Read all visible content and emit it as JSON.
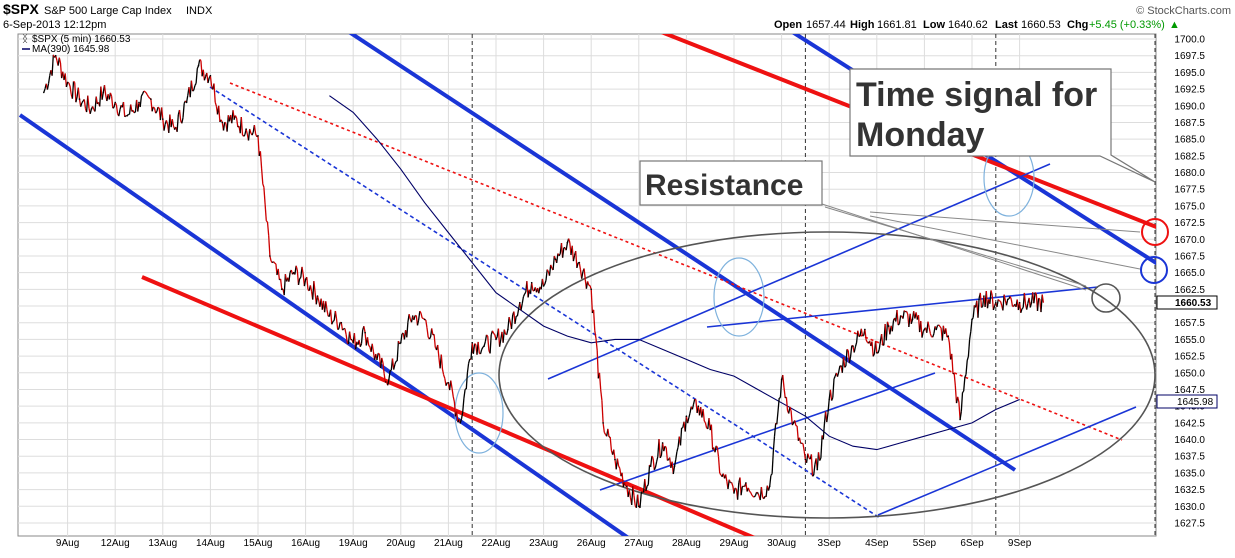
{
  "header": {
    "symbol": "$SPX",
    "description": "S&P 500 Large Cap Index",
    "exchange": "INDX",
    "date": "6-Sep-2013 12:12pm",
    "copyright": "© StockCharts.com",
    "open_label": "Open",
    "open": "1657.44",
    "high_label": "High",
    "high": "1661.81",
    "low_label": "Low",
    "low": "1640.62",
    "last_label": "Last",
    "last": "1660.53",
    "chg_label": "Chg",
    "chg": "+5.45 (+0.33%)",
    "chg_arrow": "▲"
  },
  "legend": {
    "price": "$SPX (5 min) 1660.53",
    "ma": "MA(390) 1645.98"
  },
  "badges": {
    "last": "1660.53",
    "ma": "1645.98"
  },
  "annotations": {
    "time_signal_line1": "Time signal for",
    "time_signal_line2": "Monday",
    "resistance": "Resistance"
  },
  "colors": {
    "price_up": "#000000",
    "price_down": "#cc0000",
    "ma": "#000066",
    "channel_blue": "#1a35d6",
    "channel_red": "#ee1111",
    "ellipse_gray": "#555555",
    "ellipse_lightblue": "#7fb2dd",
    "callout_line": "#888888",
    "grid": "#dddddd"
  },
  "chart_data": {
    "type": "line",
    "title": "$SPX S&P 500 Large Cap Index INDX",
    "interval": "5 min",
    "ylim": [
      1626,
      1701
    ],
    "yticks": [
      1627.5,
      1630.0,
      1632.5,
      1635.0,
      1637.5,
      1640.0,
      1642.5,
      1645.0,
      1647.5,
      1650.0,
      1652.5,
      1655.0,
      1657.5,
      1660.0,
      1662.5,
      1665.0,
      1667.5,
      1670.0,
      1672.5,
      1675.0,
      1677.5,
      1680.0,
      1682.5,
      1685.0,
      1687.5,
      1690.0,
      1692.5,
      1695.0,
      1697.5,
      1700.0
    ],
    "xlim": [
      0,
      22.55
    ],
    "x_tick_labels": [
      "9Aug",
      "12Aug",
      "13Aug",
      "14Aug",
      "15Aug",
      "16Aug",
      "19Aug",
      "20Aug",
      "21Aug",
      "22Aug",
      "23Aug",
      "26Aug",
      "27Aug",
      "28Aug",
      "29Aug",
      "30Aug",
      "3Sep",
      "4Sep",
      "5Sep",
      "6Sep",
      "9Sep"
    ],
    "month_separators_at_session": [
      9.5,
      16.5,
      20.5
    ],
    "series": [
      {
        "name": "$SPX (5 min)",
        "x": [
          0.5,
          0.75,
          1.0,
          1.25,
          1.5,
          1.75,
          2.0,
          2.25,
          2.5,
          2.75,
          3.0,
          3.25,
          3.5,
          3.75,
          4.0,
          4.25,
          4.5,
          4.75,
          5.0,
          5.25,
          5.5,
          5.75,
          6.0,
          6.25,
          6.5,
          6.75,
          7.0,
          7.25,
          7.5,
          7.75,
          8.0,
          8.25,
          8.5,
          8.75,
          9.0,
          9.25,
          9.5,
          9.75,
          10.0,
          10.25,
          10.5,
          10.75,
          11.0,
          11.25,
          11.5,
          11.75,
          12.0,
          12.25,
          12.5,
          12.75,
          13.0,
          13.25,
          13.5,
          13.75,
          14.0,
          14.25,
          14.5,
          14.75,
          15.0,
          15.25,
          15.5,
          15.75,
          16.0,
          16.25,
          16.5,
          16.75,
          17.0,
          17.25,
          17.5,
          17.75,
          18.0,
          18.25,
          18.5,
          18.75,
          19.0,
          19.25,
          19.5,
          19.75,
          20.0,
          20.25,
          20.5,
          20.75,
          21.0,
          21.25,
          21.5
        ],
        "y": [
          1692.0,
          1697.5,
          1693.5,
          1691.0,
          1689.5,
          1692.0,
          1690.5,
          1688.5,
          1690.5,
          1691.0,
          1688.0,
          1686.5,
          1690.5,
          1696.0,
          1694.5,
          1687.5,
          1688.0,
          1686.5,
          1685.5,
          1667.5,
          1662.5,
          1665.0,
          1664.0,
          1661.5,
          1658.5,
          1657.5,
          1654.5,
          1656.0,
          1652.0,
          1649.0,
          1654.5,
          1658.5,
          1658.0,
          1653.5,
          1648.5,
          1642.5,
          1654.5,
          1654.0,
          1655.0,
          1656.5,
          1660.5,
          1663.5,
          1663.0,
          1667.0,
          1669.5,
          1666.5,
          1662.5,
          1642.5,
          1637.0,
          1633.0,
          1630.0,
          1636.0,
          1639.5,
          1636.0,
          1643.5,
          1645.0,
          1641.5,
          1634.5,
          1632.0,
          1633.5,
          1632.0,
          1633.0,
          1649.0,
          1642.5,
          1637.0,
          1635.5,
          1646.0,
          1651.0,
          1654.0,
          1656.5,
          1653.0,
          1657.0,
          1658.5,
          1658.0,
          1656.5,
          1656.5,
          1655.5,
          1643.0,
          1658.0,
          1661.5,
          1660.5,
          1661.0,
          1660.5,
          1660.5,
          1660.5
        ]
      },
      {
        "name": "MA(390)",
        "x": [
          6.5,
          7.0,
          7.5,
          8.0,
          8.5,
          9.0,
          9.5,
          10.0,
          10.5,
          11.0,
          11.5,
          12.0,
          12.5,
          13.0,
          13.5,
          14.0,
          14.5,
          15.0,
          15.5,
          16.0,
          16.5,
          17.0,
          17.5,
          18.0,
          18.5,
          19.0,
          19.5,
          20.0,
          20.5,
          21.0
        ],
        "y": [
          1691.5,
          1689.0,
          1685.0,
          1680.5,
          1675.5,
          1671.0,
          1666.5,
          1662.0,
          1659.5,
          1657.0,
          1655.5,
          1654.5,
          1655.0,
          1655.0,
          1653.5,
          1652.0,
          1650.5,
          1649.5,
          1647.5,
          1645.5,
          1643.5,
          1640.5,
          1639.0,
          1638.5,
          1639.5,
          1640.5,
          1641.5,
          1642.5,
          1644.5,
          1646.0
        ]
      }
    ]
  }
}
